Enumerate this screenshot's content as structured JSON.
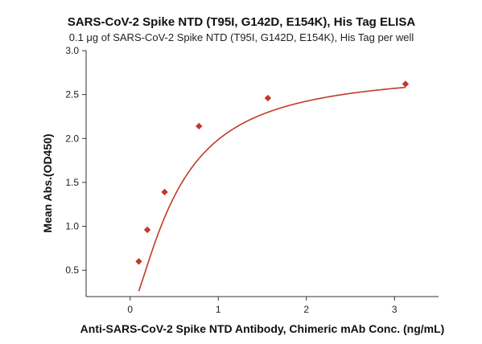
{
  "chart_data": {
    "type": "scatter",
    "title": "SARS-CoV-2 Spike NTD (T95I, G142D, E154K), His Tag ELISA",
    "subtitle": "0.1 μg of SARS-CoV-2 Spike NTD (T95I, G142D, E154K), His Tag per well",
    "xlabel": "Anti-SARS-CoV-2 Spike NTD Antibody, Chimeric mAb Conc. (ng/mL)",
    "ylabel": "Mean Abs.(OD450)",
    "xlim": [
      -0.5,
      3.5
    ],
    "ylim": [
      0.2,
      3.0
    ],
    "xticks": [
      0,
      1,
      2,
      3
    ],
    "xtick_labels": [
      "0",
      "1",
      "2",
      "3"
    ],
    "yticks": [
      0.5,
      1.0,
      1.5,
      2.0,
      2.5,
      3.0
    ],
    "ytick_labels": [
      "0.5",
      "1.0",
      "1.5",
      "2.0",
      "2.5",
      "3.0"
    ],
    "grid": false,
    "series": [
      {
        "x": [
          0.098,
          0.195,
          0.391,
          0.781,
          1.563,
          3.125
        ],
        "y": [
          0.6,
          0.96,
          1.39,
          2.14,
          2.46,
          2.62
        ],
        "marker": "diamond",
        "fit_curve": "4-parameter logistic",
        "color": "#c0392b"
      }
    ]
  }
}
